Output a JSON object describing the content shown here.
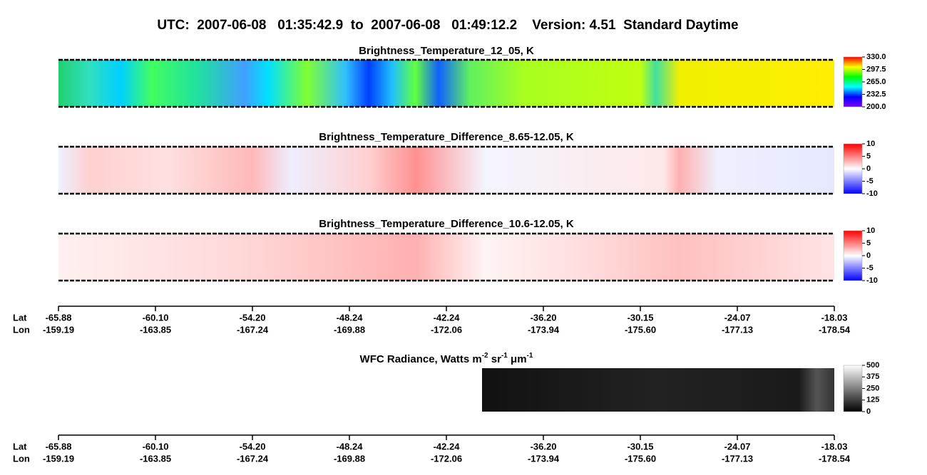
{
  "title": "UTC:  2007-06-08   01:35:42.9  to  2007-06-08   01:49:12.2    Version: 4.51  Standard Daytime",
  "chart_data": [
    {
      "type": "heatmap",
      "title": "Brightness_Temperature_12_05, K",
      "colors": [
        "#8000ff",
        "#0000ff",
        "#00ffff",
        "#00ff00",
        "#ffff00",
        "#ff0000"
      ],
      "ylim": [
        200,
        330
      ],
      "yticks": [
        {
          "value": 330,
          "label": "330.0"
        },
        297.5,
        {
          "value": 265,
          "label": "265.0"
        },
        232.5,
        {
          "value": 200,
          "label": "200.0"
        }
      ]
    },
    {
      "type": "heatmap",
      "title": "Brightness_Temperature_Difference_8.65-12.05, K",
      "colors": [
        "#0000ff",
        "#ffffff",
        "#ff0000"
      ],
      "ylim": [
        -10,
        10
      ],
      "yticks": [
        10,
        5,
        0,
        -5,
        -10
      ]
    },
    {
      "type": "heatmap",
      "title": "Brightness_Temperature_Difference_10.6-12.05, K",
      "colors": [
        "#0000ff",
        "#ffffff",
        "#ff0000"
      ],
      "ylim": [
        -10,
        10
      ],
      "yticks": [
        10,
        5,
        0,
        -5,
        -10
      ]
    },
    {
      "type": "heatmap",
      "title_parts": [
        "WFC Radiance, Watts m",
        "-2",
        " sr",
        "-1",
        " μm",
        "-1"
      ],
      "colors": [
        "#000000",
        "#ffffff"
      ],
      "ylim": [
        0,
        500
      ],
      "yticks": [
        500,
        375,
        250,
        125,
        0
      ]
    }
  ],
  "x_axis": {
    "labels": [
      "Lat",
      "Lon"
    ],
    "lat": [
      "-65.88",
      "-60.10",
      "-54.20",
      "-48.24",
      "-42.24",
      "-36.20",
      "-30.15",
      "-24.07",
      "-18.03"
    ],
    "lon": [
      "-159.19",
      "-163.85",
      "-167.24",
      "-169.88",
      "-172.06",
      "-173.94",
      "-175.60",
      "-177.13",
      "-178.54"
    ]
  }
}
